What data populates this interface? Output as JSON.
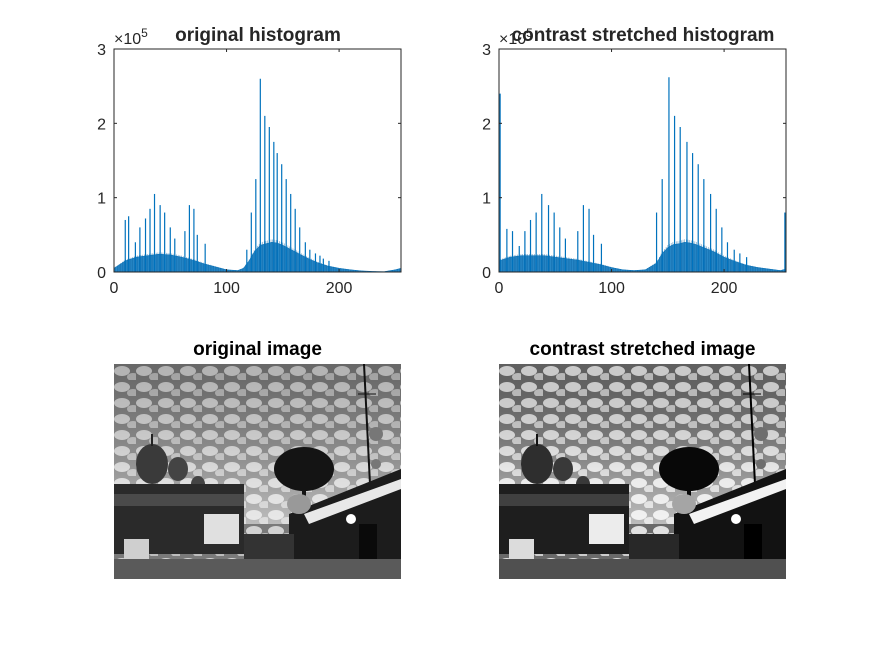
{
  "chart_data": [
    {
      "type": "bar",
      "title": "original histogram",
      "xlim": [
        0,
        255
      ],
      "ylim": [
        0,
        300000
      ],
      "xticks": [
        0,
        100,
        200
      ],
      "yticks": [
        0,
        1,
        2,
        3
      ],
      "xtick_labels": [
        "0",
        "100",
        "200"
      ],
      "ytick_labels": [
        "0",
        "1",
        "2",
        "3"
      ],
      "y_exponent_label": "×10",
      "y_exponent": "5",
      "bar_color": "#0072bd",
      "grid": false,
      "spikes": {
        "x": [
          10,
          13,
          19,
          23,
          28,
          32,
          36,
          41,
          45,
          50,
          54,
          63,
          67,
          71,
          74,
          81,
          118,
          122,
          126,
          130,
          134,
          138,
          142,
          145,
          149,
          153,
          157,
          161,
          165,
          170,
          174,
          179,
          183,
          186,
          191
        ],
        "y": [
          70000,
          75000,
          40000,
          60000,
          72000,
          85000,
          105000,
          90000,
          80000,
          60000,
          45000,
          55000,
          90000,
          85000,
          50000,
          38000,
          30000,
          80000,
          125000,
          260000,
          210000,
          195000,
          175000,
          160000,
          145000,
          125000,
          105000,
          85000,
          60000,
          40000,
          30000,
          25000,
          22000,
          18000,
          15000
        ]
      },
      "envelope": {
        "x": [
          0,
          10,
          20,
          30,
          40,
          50,
          60,
          70,
          80,
          90,
          100,
          110,
          115,
          120,
          125,
          130,
          135,
          140,
          145,
          150,
          155,
          160,
          170,
          180,
          190,
          200,
          210,
          220,
          230,
          240,
          250,
          255
        ],
        "y": [
          5000,
          15000,
          20000,
          22000,
          24000,
          23000,
          20000,
          16000,
          11000,
          7000,
          3000,
          2000,
          5000,
          15000,
          28000,
          36000,
          38000,
          40000,
          39000,
          36000,
          32000,
          28000,
          20000,
          13000,
          8000,
          5000,
          3000,
          1500,
          800,
          500,
          3000,
          5000
        ]
      }
    },
    {
      "type": "bar",
      "title": "contrast stretched histogram",
      "xlim": [
        0,
        255
      ],
      "ylim": [
        0,
        300000
      ],
      "xticks": [
        0,
        100,
        200
      ],
      "yticks": [
        0,
        1,
        2,
        3
      ],
      "xtick_labels": [
        "0",
        "100",
        "200"
      ],
      "ytick_labels": [
        "0",
        "1",
        "2",
        "3"
      ],
      "y_exponent_label": "×10",
      "y_exponent": "5",
      "bar_color": "#0072bd",
      "grid": false,
      "spikes": {
        "x": [
          1,
          7,
          12,
          18,
          23,
          28,
          33,
          38,
          44,
          49,
          54,
          59,
          70,
          75,
          80,
          84,
          91,
          140,
          145,
          151,
          156,
          161,
          167,
          172,
          177,
          182,
          188,
          193,
          198,
          203,
          209,
          214,
          220,
          254
        ],
        "y": [
          240000,
          58000,
          55000,
          35000,
          55000,
          70000,
          80000,
          105000,
          90000,
          80000,
          60000,
          45000,
          55000,
          90000,
          85000,
          50000,
          38000,
          80000,
          125000,
          262000,
          210000,
          195000,
          175000,
          160000,
          145000,
          125000,
          105000,
          85000,
          60000,
          40000,
          30000,
          25000,
          20000,
          80000
        ]
      },
      "envelope": {
        "x": [
          0,
          10,
          20,
          30,
          40,
          50,
          60,
          70,
          80,
          90,
          100,
          110,
          120,
          130,
          140,
          145,
          150,
          155,
          160,
          165,
          170,
          175,
          180,
          190,
          200,
          210,
          220,
          230,
          240,
          250,
          255
        ],
        "y": [
          15000,
          20000,
          22000,
          22000,
          22000,
          20000,
          18000,
          16000,
          13000,
          10000,
          6000,
          3000,
          2000,
          3000,
          12000,
          25000,
          33000,
          37000,
          38000,
          40000,
          39000,
          37000,
          34000,
          28000,
          20000,
          14000,
          9000,
          6000,
          4000,
          2000,
          4000
        ]
      }
    }
  ],
  "images": [
    {
      "title": "original image"
    },
    {
      "title": "contrast stretched image"
    }
  ]
}
